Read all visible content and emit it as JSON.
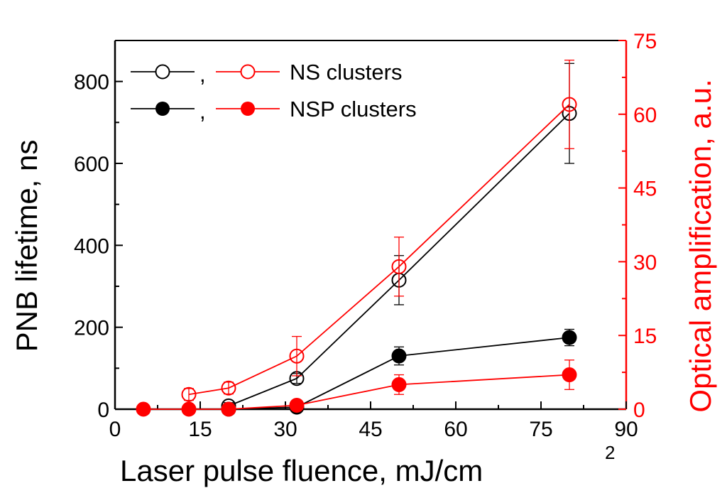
{
  "chart_data": {
    "type": "line",
    "xlabel": "Laser pulse fluence, mJ/cm",
    "xlabel_superscript": "2",
    "ylabel_left": "PNB lifetime, ns",
    "ylabel_right": "Optical amplification, a.u.",
    "xlim": [
      0,
      90
    ],
    "ylim_left": [
      0,
      900
    ],
    "ylim_right": [
      0,
      75
    ],
    "x_ticks": [
      "0",
      "15",
      "30",
      "45",
      "60",
      "75",
      "90"
    ],
    "y_left_ticks": [
      "0",
      "200",
      "400",
      "600",
      "800"
    ],
    "y_right_ticks": [
      "0",
      "15",
      "30",
      "45",
      "60",
      "75"
    ],
    "legend_position": "top-left",
    "legend": [
      {
        "label": "NS clusters",
        "separator": ",",
        "symbol": "open-circle"
      },
      {
        "label": "NSP clusters",
        "separator": ",",
        "symbol": "filled-circle"
      }
    ],
    "colors": {
      "lifetime": "#000000",
      "amplification": "#ff0000"
    },
    "series": [
      {
        "name": "NS clusters lifetime",
        "axis": "left",
        "color": "#000000",
        "marker": "open",
        "x": [
          20,
          32,
          50,
          80
        ],
        "y": [
          8,
          75,
          315,
          722
        ],
        "err": [
          8,
          12,
          60,
          122
        ]
      },
      {
        "name": "NS clusters optical amplification",
        "axis": "right",
        "color": "#ff0000",
        "marker": "open",
        "x": [
          13,
          20,
          32,
          50,
          80
        ],
        "y": [
          3,
          4.3,
          10.8,
          29,
          62
        ],
        "err": [
          1.2,
          1.2,
          4,
          6,
          9
        ]
      },
      {
        "name": "NSP clusters lifetime",
        "axis": "left",
        "color": "#000000",
        "marker": "filled",
        "x": [
          20,
          32,
          50,
          80
        ],
        "y": [
          0,
          5,
          130,
          175
        ],
        "err": [
          0,
          0,
          22,
          20
        ]
      },
      {
        "name": "NSP clusters optical amplification",
        "axis": "right",
        "color": "#ff0000",
        "marker": "filled",
        "x": [
          5,
          13,
          20,
          32,
          50,
          80
        ],
        "y": [
          0,
          0,
          0,
          0.8,
          5,
          7
        ],
        "err": [
          0,
          0,
          0,
          0,
          2,
          3
        ]
      }
    ]
  }
}
